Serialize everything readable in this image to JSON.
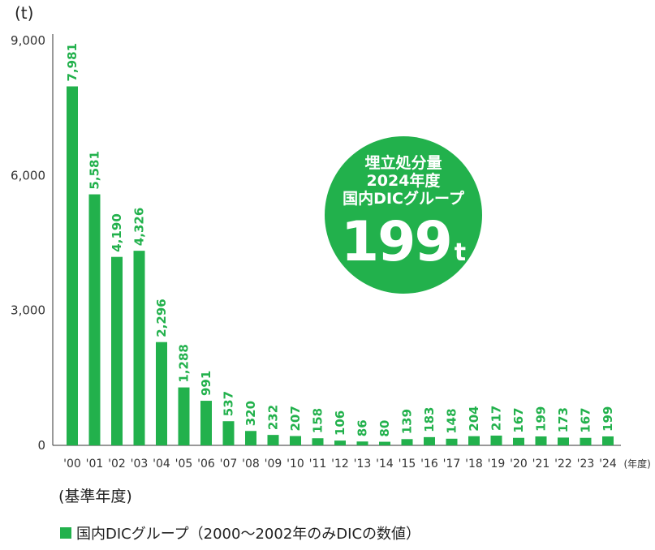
{
  "chart_data": {
    "type": "bar",
    "unit_label": "(t)",
    "categories": [
      "'00",
      "'01",
      "'02",
      "'03",
      "'04",
      "'05",
      "'06",
      "'07",
      "'08",
      "'09",
      "'10",
      "'11",
      "'12",
      "'13",
      "'14",
      "'15",
      "'16",
      "'17",
      "'18",
      "'19",
      "'20",
      "'21",
      "'22",
      "'23",
      "'24"
    ],
    "series": [
      {
        "name": "国内DICグループ（2000～2002年のみDICの数値）",
        "values": [
          7981,
          5581,
          4190,
          4326,
          2296,
          1288,
          991,
          537,
          320,
          232,
          207,
          158,
          106,
          86,
          80,
          139,
          183,
          148,
          204,
          217,
          167,
          199,
          173,
          167,
          199
        ],
        "value_labels": [
          "7,981",
          "5,581",
          "4,190",
          "4,326",
          "2,296",
          "1,288",
          "991",
          "537",
          "320",
          "232",
          "207",
          "158",
          "106",
          "86",
          "80",
          "139",
          "183",
          "148",
          "204",
          "217",
          "167",
          "199",
          "173",
          "167",
          "199"
        ]
      }
    ],
    "ylim": [
      0,
      9000
    ],
    "yticks": [
      0,
      3000,
      6000,
      9000
    ],
    "ytick_labels": [
      "0",
      "3,000",
      "6,000",
      "9,000"
    ],
    "x_unit_label": "(年度)",
    "grid": false,
    "bar_color": "#22b14c",
    "label_color": "#22b14c"
  },
  "badge": {
    "line1": "埋立処分量",
    "line2": "2024年度",
    "line3": "国内DICグループ",
    "value": "199",
    "unit": "t"
  },
  "note": "(基準年度)",
  "legend_label": "国内DICグループ（2000～2002年のみDICの数値）"
}
